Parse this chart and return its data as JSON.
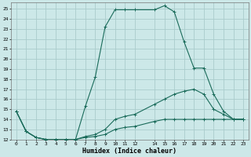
{
  "xlabel": "Humidex (Indice chaleur)",
  "bg_color": "#cce8e8",
  "grid_color": "#aacccc",
  "line_color": "#1a6b5a",
  "xlim": [
    -0.5,
    23.5
  ],
  "ylim": [
    12,
    25.6
  ],
  "xtick_vals": [
    0,
    1,
    2,
    3,
    4,
    5,
    6,
    7,
    8,
    9,
    10,
    11,
    12,
    14,
    15,
    16,
    17,
    18,
    19,
    20,
    21,
    22,
    23
  ],
  "xtick_labels": [
    "0",
    "1",
    "2",
    "3",
    "4",
    "5",
    "6",
    "7",
    "8",
    "9",
    "10",
    "11",
    "12",
    "14",
    "15",
    "16",
    "17",
    "18",
    "19",
    "20",
    "21",
    "22",
    "23"
  ],
  "ytick_vals": [
    12,
    13,
    14,
    15,
    16,
    17,
    18,
    19,
    20,
    21,
    22,
    23,
    24,
    25
  ],
  "ytick_labels": [
    "12",
    "13",
    "14",
    "15",
    "16",
    "17",
    "18",
    "19",
    "20",
    "21",
    "22",
    "23",
    "24",
    "25"
  ],
  "series1": [
    [
      0,
      14.8
    ],
    [
      1,
      12.8
    ],
    [
      2,
      12.2
    ],
    [
      3,
      12.0
    ],
    [
      4,
      12.0
    ],
    [
      5,
      12.0
    ],
    [
      6,
      12.0
    ],
    [
      7,
      15.3
    ],
    [
      8,
      18.2
    ],
    [
      9,
      23.2
    ],
    [
      10,
      24.9
    ],
    [
      11,
      24.9
    ],
    [
      12,
      24.9
    ],
    [
      14,
      24.9
    ],
    [
      15,
      25.3
    ],
    [
      16,
      24.7
    ],
    [
      17,
      21.7
    ],
    [
      18,
      19.1
    ],
    [
      19,
      19.1
    ],
    [
      20,
      16.5
    ],
    [
      21,
      14.8
    ],
    [
      22,
      14.0
    ],
    [
      23,
      14.0
    ]
  ],
  "series2": [
    [
      0,
      14.8
    ],
    [
      1,
      12.8
    ],
    [
      2,
      12.2
    ],
    [
      3,
      12.0
    ],
    [
      4,
      12.0
    ],
    [
      5,
      12.0
    ],
    [
      6,
      12.0
    ],
    [
      7,
      12.3
    ],
    [
      8,
      12.5
    ],
    [
      9,
      13.0
    ],
    [
      10,
      14.0
    ],
    [
      11,
      14.3
    ],
    [
      12,
      14.5
    ],
    [
      14,
      15.5
    ],
    [
      15,
      16.0
    ],
    [
      16,
      16.5
    ],
    [
      17,
      16.8
    ],
    [
      18,
      17.0
    ],
    [
      19,
      16.5
    ],
    [
      20,
      15.0
    ],
    [
      21,
      14.5
    ],
    [
      22,
      14.0
    ],
    [
      23,
      14.0
    ]
  ],
  "series3": [
    [
      0,
      14.8
    ],
    [
      1,
      12.8
    ],
    [
      2,
      12.2
    ],
    [
      3,
      12.0
    ],
    [
      4,
      12.0
    ],
    [
      5,
      12.0
    ],
    [
      6,
      12.0
    ],
    [
      7,
      12.2
    ],
    [
      8,
      12.3
    ],
    [
      9,
      12.5
    ],
    [
      10,
      13.0
    ],
    [
      11,
      13.2
    ],
    [
      12,
      13.3
    ],
    [
      14,
      13.8
    ],
    [
      15,
      14.0
    ],
    [
      16,
      14.0
    ],
    [
      17,
      14.0
    ],
    [
      18,
      14.0
    ],
    [
      19,
      14.0
    ],
    [
      20,
      14.0
    ],
    [
      21,
      14.0
    ],
    [
      22,
      14.0
    ],
    [
      23,
      14.0
    ]
  ]
}
